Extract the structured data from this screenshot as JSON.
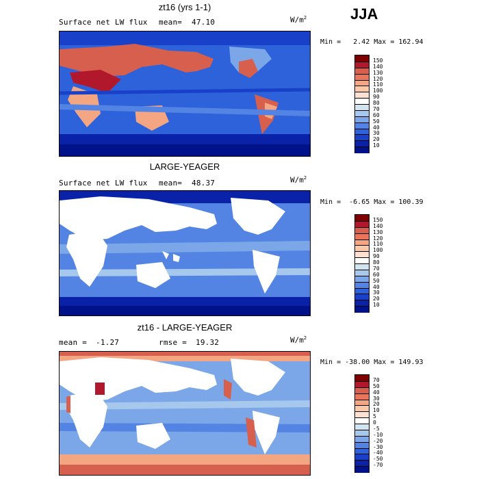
{
  "season": "JJA",
  "units_base": "W/m",
  "units_exp": "2",
  "chart_data": [
    {
      "type": "heatmap",
      "title": "zt16 (yrs 1-1)",
      "left_label": "Surface net LW flux",
      "stat_label": "mean=",
      "stat_value": "47.10",
      "minmax": "Min =   2.42 Max = 162.94",
      "colorbar_ticks": [
        "150",
        "140",
        "130",
        "120",
        "110",
        "100",
        "90",
        "80",
        "70",
        "60",
        "50",
        "40",
        "30",
        "20",
        "10"
      ],
      "colors": [
        "#7f0000",
        "#b2182b",
        "#d6604d",
        "#e9765a",
        "#f4a582",
        "#fbc9a8",
        "#fde0cf",
        "#ffffff",
        "#d1e5f0",
        "#a6c8ec",
        "#7ba7e8",
        "#5384e3",
        "#2e62db",
        "#1840c8",
        "#0a22a8",
        "#00128a"
      ]
    },
    {
      "type": "heatmap",
      "title": "LARGE-YEAGER",
      "left_label": "Surface net LW flux",
      "stat_label": "mean=",
      "stat_value": "48.37",
      "minmax": "Min =  -6.65 Max = 100.39",
      "colorbar_ticks": [
        "150",
        "140",
        "130",
        "120",
        "110",
        "100",
        "90",
        "80",
        "70",
        "60",
        "50",
        "40",
        "30",
        "20",
        "10"
      ],
      "colors": [
        "#7f0000",
        "#b2182b",
        "#d6604d",
        "#e9765a",
        "#f4a582",
        "#fbc9a8",
        "#fde0cf",
        "#ffffff",
        "#d1e5f0",
        "#a6c8ec",
        "#7ba7e8",
        "#5384e3",
        "#2e62db",
        "#1840c8",
        "#0a22a8",
        "#00128a"
      ]
    },
    {
      "type": "heatmap",
      "title": "zt16 - LARGE-YEAGER",
      "left_label": "mean =",
      "left_value": "-1.27",
      "stat_label": "rmse =",
      "stat_value": "19.32",
      "minmax": "Min = -38.00 Max = 149.93",
      "colorbar_ticks": [
        "70",
        "50",
        "40",
        "30",
        "20",
        "10",
        "5",
        "0",
        "-5",
        "-10",
        "-20",
        "-30",
        "-40",
        "-50",
        "-70"
      ],
      "colors": [
        "#7f0000",
        "#b2182b",
        "#d6604d",
        "#e9765a",
        "#f4a582",
        "#fbc9a8",
        "#fde0cf",
        "#ffffff",
        "#d1e5f0",
        "#a6c8ec",
        "#7ba7e8",
        "#5384e3",
        "#2e62db",
        "#1840c8",
        "#0a22a8",
        "#00128a"
      ]
    }
  ]
}
